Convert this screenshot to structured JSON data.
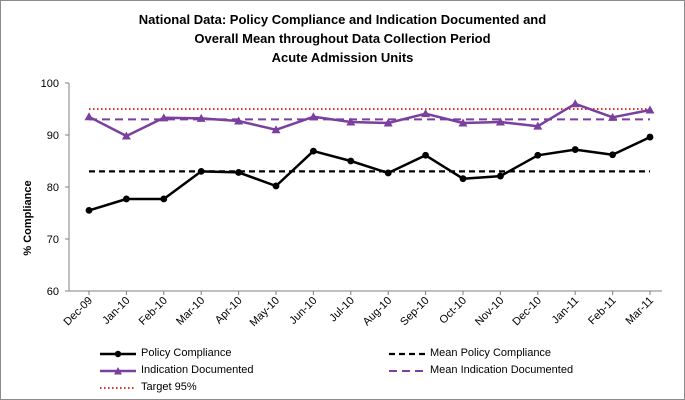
{
  "chart_data": {
    "type": "line",
    "title_lines": [
      "National Data: Policy Compliance and Indication Documented and",
      "Overall Mean throughout Data Collection Period",
      "Acute Admission Units"
    ],
    "ylabel": "% Compliance",
    "ylim": [
      60,
      100
    ],
    "yticks": [
      60,
      70,
      80,
      90,
      100
    ],
    "categories": [
      "Dec-09",
      "Jan-10",
      "Feb-10",
      "Mar-10",
      "Apr-10",
      "May-10",
      "Jun-10",
      "Jul-10",
      "Aug-10",
      "Sep-10",
      "Oct-10",
      "Nov-10",
      "Dec-10",
      "Jan-11",
      "Feb-11",
      "Mar-11"
    ],
    "series": [
      {
        "name": "Policy Compliance",
        "color": "#000000",
        "marker": "circle",
        "values": [
          75.5,
          77.7,
          77.7,
          83.0,
          82.8,
          80.2,
          86.9,
          85.0,
          82.7,
          86.1,
          81.6,
          82.1,
          86.1,
          87.2,
          86.2,
          89.6
        ]
      },
      {
        "name": "Indication Documented",
        "color": "#7b3f9e",
        "marker": "triangle",
        "values": [
          93.5,
          89.8,
          93.3,
          93.2,
          92.7,
          91.0,
          93.5,
          92.5,
          92.3,
          94.1,
          92.3,
          92.5,
          91.7,
          96.0,
          93.4,
          94.8
        ]
      }
    ],
    "reference_lines": [
      {
        "name": "Mean Policy Compliance",
        "value": 83.0,
        "color": "#000000",
        "style": "dashed"
      },
      {
        "name": "Mean Indication Documented",
        "value": 93.0,
        "color": "#7b3f9e",
        "style": "dashed"
      },
      {
        "name": "Target 95%",
        "value": 95,
        "color": "#e03020",
        "style": "dotted"
      }
    ],
    "legend": {
      "position": "bottom",
      "items": [
        "Policy Compliance",
        "Mean Policy Compliance",
        "Indication Documented",
        "Mean Indication Documented",
        "Target 95%"
      ]
    }
  }
}
